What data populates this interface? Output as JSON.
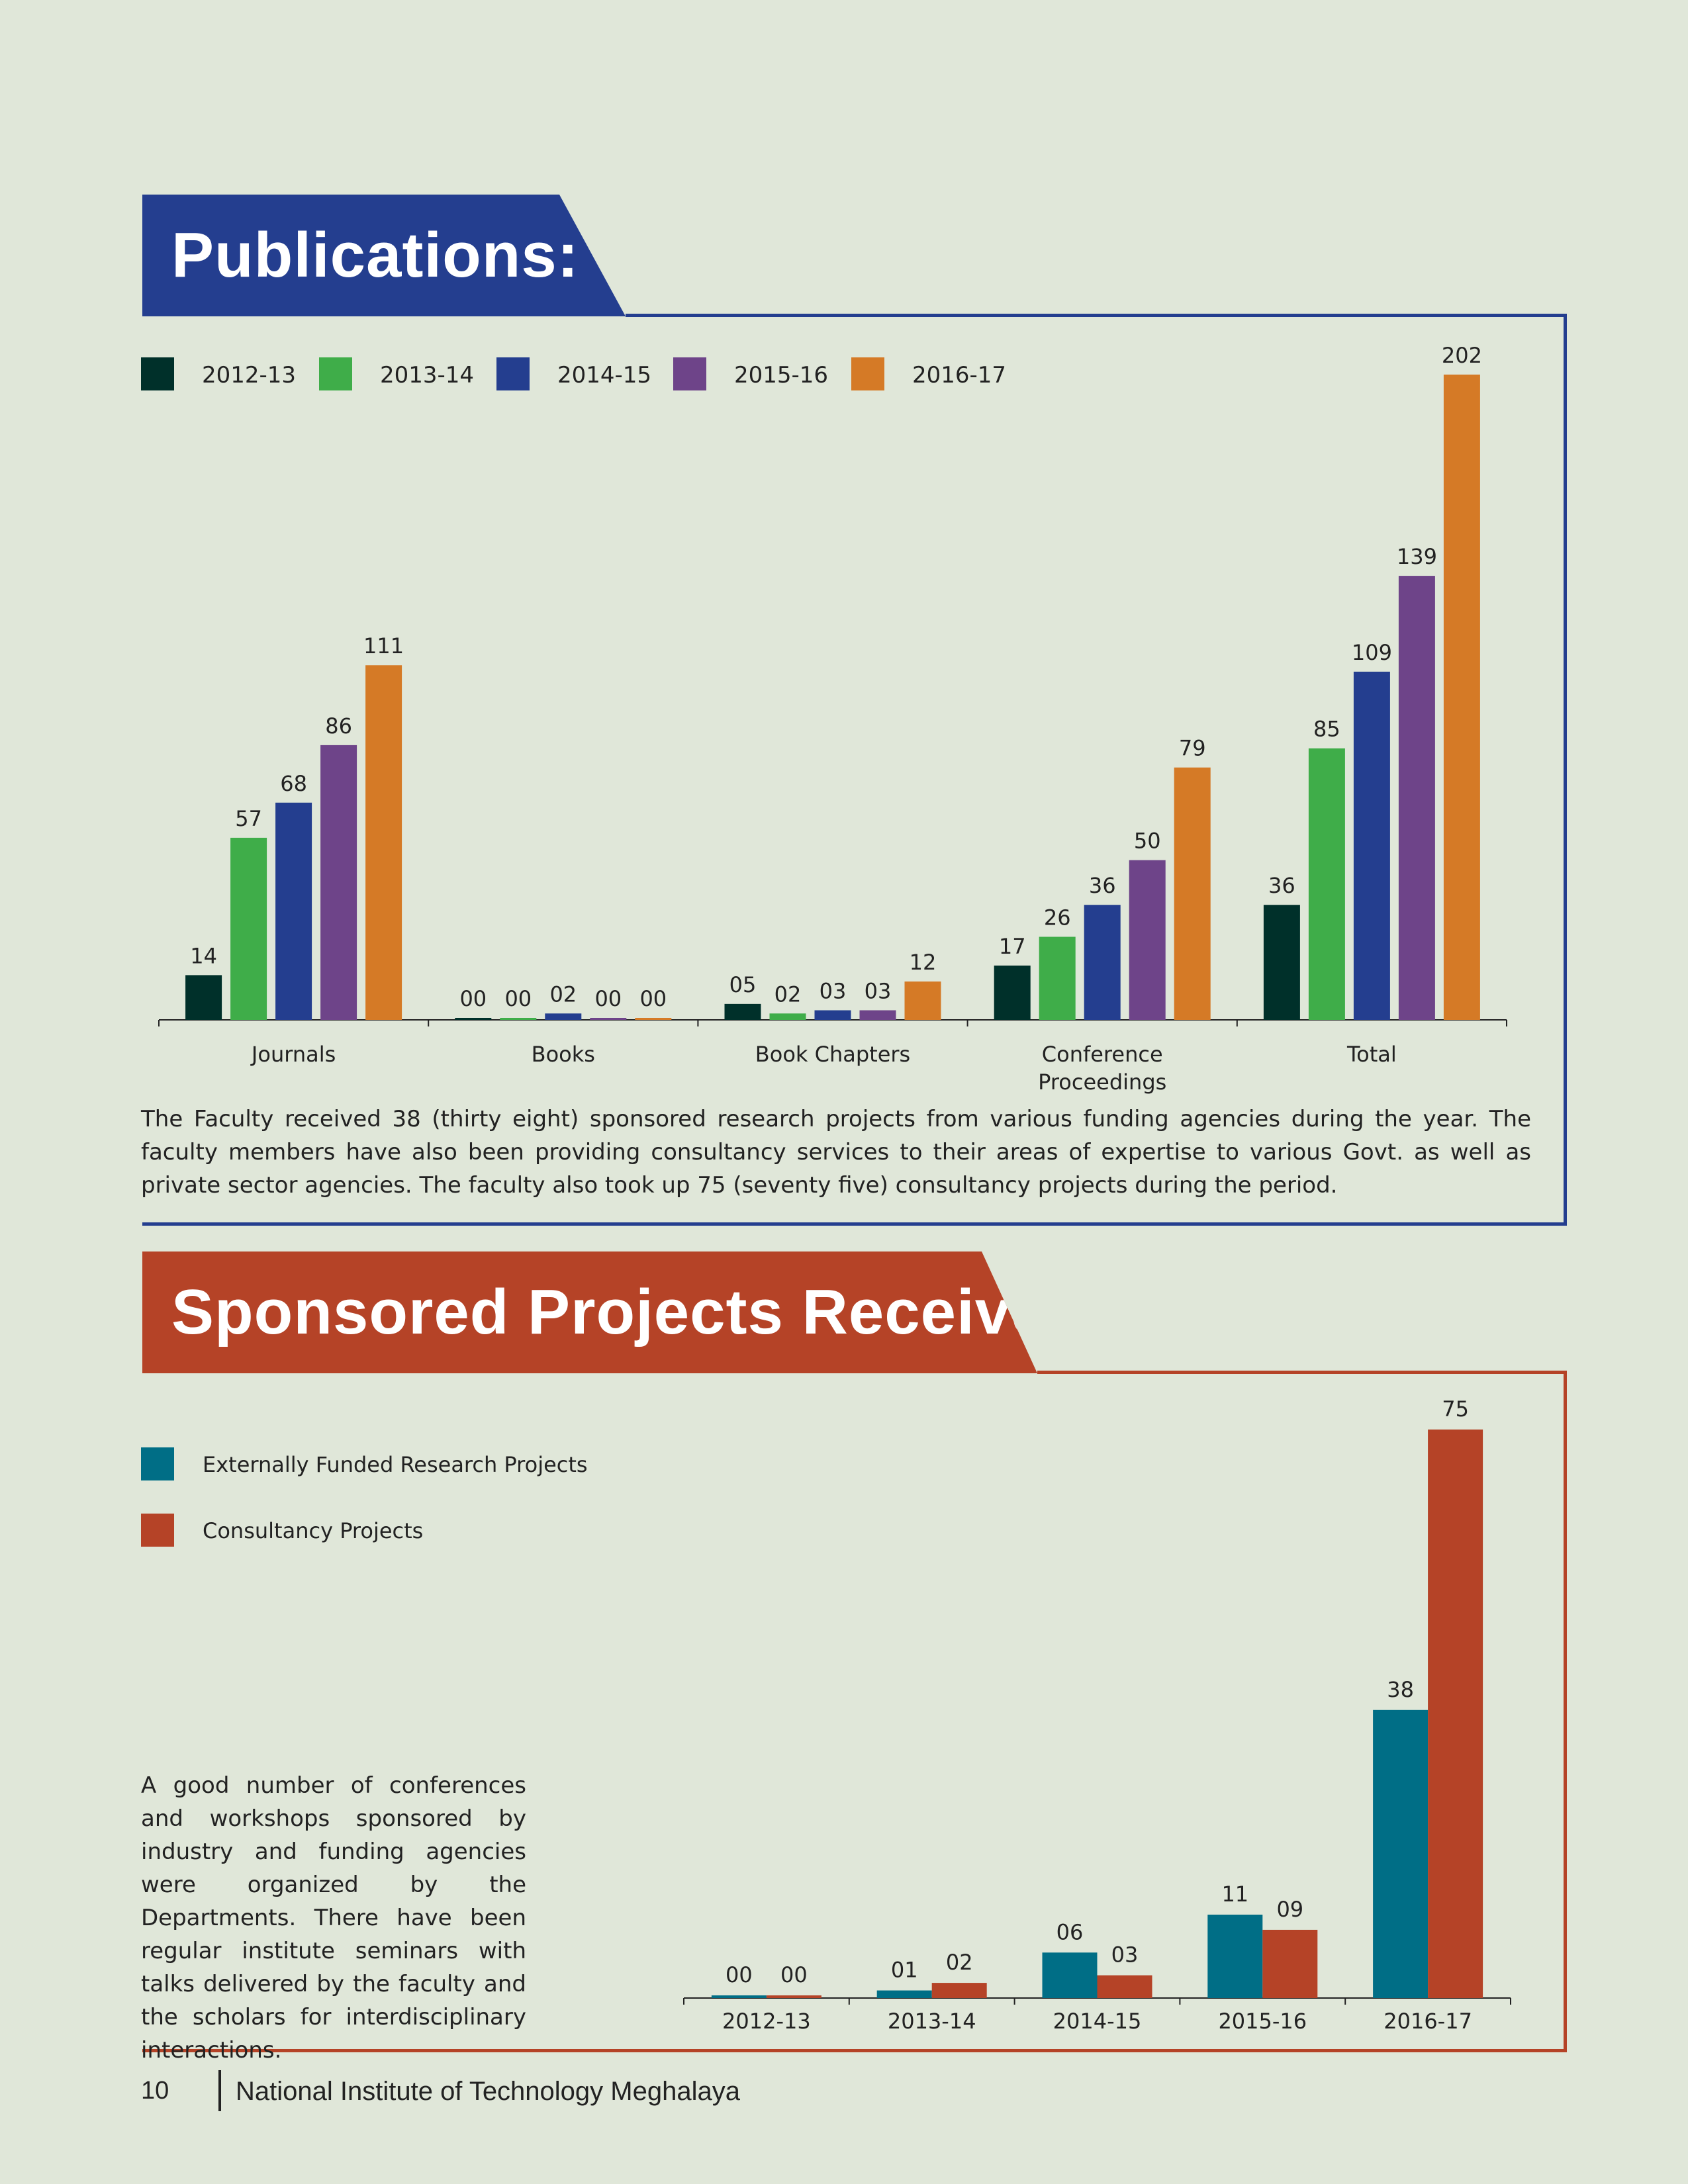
{
  "publications": {
    "heading": "Publications:",
    "paragraph": "The Faculty received 38 (thirty eight) sponsored research projects from various funding agencies during the year. The faculty members have also been providing consultancy services to their areas of expertise to various Govt. as well as private sector agencies. The faculty also took up 75 (seventy five) consultancy projects during the period."
  },
  "sponsored": {
    "heading": "Sponsored Projects Received:",
    "paragraph": "A good number of conferences and workshops sponsored by industry and funding agencies were organized by the Departments. There have been regular institute seminars with talks delivered by the faculty and the scholars for interdisciplinary interactions."
  },
  "footer": {
    "page_number": "10",
    "institute": "National Institute of Technology Meghalaya"
  },
  "chart_data": [
    {
      "type": "bar",
      "categories": [
        "Journals",
        "Books",
        "Book Chapters",
        "Conference Proceedings",
        "Total"
      ],
      "series": [
        {
          "name": "2012-13",
          "color": "#00302a",
          "values": [
            14,
            0,
            5,
            17,
            36
          ],
          "labels": [
            "14",
            "00",
            "05",
            "17",
            "36"
          ]
        },
        {
          "name": "2013-14",
          "color": "#3fad49",
          "values": [
            57,
            0,
            2,
            26,
            85
          ],
          "labels": [
            "57",
            "00",
            "02",
            "26",
            "85"
          ]
        },
        {
          "name": "2014-15",
          "color": "#243e8f",
          "values": [
            68,
            2,
            3,
            36,
            109
          ],
          "labels": [
            "68",
            "02",
            "03",
            "36",
            "109"
          ]
        },
        {
          "name": "2015-16",
          "color": "#6e4489",
          "values": [
            86,
            0,
            3,
            50,
            139
          ],
          "labels": [
            "86",
            "00",
            "03",
            "50",
            "139"
          ]
        },
        {
          "name": "2016-17",
          "color": "#d57a26",
          "values": [
            111,
            0,
            12,
            79,
            202
          ],
          "labels": [
            "111",
            "00",
            "12",
            "79",
            "202"
          ]
        }
      ],
      "ylim": [
        0,
        202
      ],
      "legend": "top-left"
    },
    {
      "type": "bar",
      "categories": [
        "2012-13",
        "2013-14",
        "2014-15",
        "2015-16",
        "2016-17"
      ],
      "series": [
        {
          "name": "Externally Funded Research Projects",
          "color": "#006e86",
          "values": [
            0,
            1,
            6,
            11,
            38
          ],
          "labels": [
            "00",
            "01",
            "06",
            "11",
            "38"
          ]
        },
        {
          "name": "Consultancy Projects",
          "color": "#b54327",
          "values": [
            0,
            2,
            3,
            9,
            75
          ],
          "labels": [
            "00",
            "02",
            "03",
            "09",
            "75"
          ]
        }
      ],
      "ylim": [
        0,
        75
      ],
      "legend": "top-left"
    }
  ]
}
